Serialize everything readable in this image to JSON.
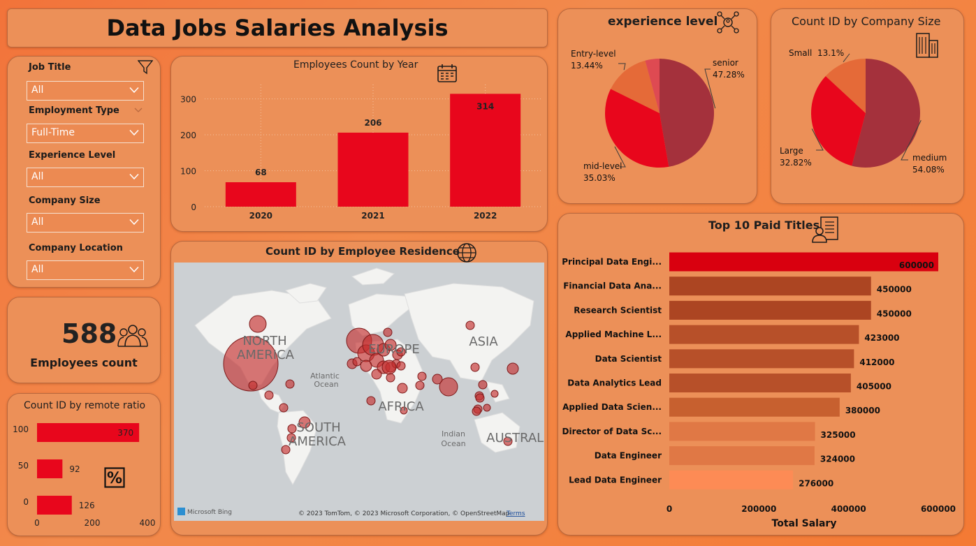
{
  "header": {
    "title": "Data Jobs Salaries Analysis"
  },
  "filters": {
    "items": [
      {
        "label": "Job Title",
        "value": "All"
      },
      {
        "label": "Employment Type",
        "value": "Full-Time"
      },
      {
        "label": "Experience Level",
        "value": "All"
      },
      {
        "label": "Company Size",
        "value": "All"
      },
      {
        "label": "Company Location",
        "value": "All"
      }
    ]
  },
  "kpi": {
    "value": "588",
    "label": "Employees count"
  },
  "colors": {
    "red": "#e8061c",
    "bar_dark": "#b0482a",
    "mid": "#c53428",
    "senior": "#a4313c",
    "small": "#e56a38"
  },
  "chart_data": [
    {
      "type": "bar",
      "title": "Employees Count by Year",
      "categories": [
        "2020",
        "2021",
        "2022"
      ],
      "values": [
        68,
        206,
        314
      ],
      "yticks": [
        "0",
        "100",
        "200",
        "300"
      ],
      "ylim": [
        0,
        340
      ],
      "grid": true
    },
    {
      "type": "bar",
      "orientation": "horizontal",
      "title": "Count ID by remote ratio",
      "categories": [
        "100",
        "50",
        "0"
      ],
      "values": [
        370,
        92,
        126
      ],
      "xticks": [
        "0",
        "200",
        "400"
      ],
      "xlim": [
        0,
        400
      ]
    },
    {
      "type": "pie",
      "title": "experience level",
      "slices": [
        {
          "label": "senior",
          "pct": "47.28%",
          "value": 47.28,
          "color": "#a4313c"
        },
        {
          "label": "mid-level",
          "pct": "35.03%",
          "value": 35.03,
          "color": "#e8061c"
        },
        {
          "label": "Entry-level",
          "pct": "13.44%",
          "value": 13.44,
          "color": "#e56a38"
        },
        {
          "label": "",
          "pct": "",
          "value": 4.25,
          "color": "#de4a52"
        }
      ]
    },
    {
      "type": "pie",
      "title": "Count ID by Company Size",
      "slices": [
        {
          "label": "medium",
          "pct": "54.08%",
          "value": 54.08,
          "color": "#a4313c"
        },
        {
          "label": "Large",
          "pct": "32.82%",
          "value": 32.82,
          "color": "#e8061c"
        },
        {
          "label": "Small",
          "pct": "13.1%",
          "value": 13.1,
          "color": "#e56a38"
        }
      ]
    },
    {
      "type": "bar",
      "orientation": "horizontal",
      "title": "Top 10 Paid Titles",
      "xlabel": "Total Salary",
      "categories": [
        "Principal Data Engi...",
        "Financial Data Ana...",
        "Research Scientist",
        "Applied Machine L...",
        "Data Scientist",
        "Data Analytics Lead",
        "Applied Data Scien...",
        "Director of Data Sc...",
        "Data Engineer",
        "Lead Data Engineer"
      ],
      "values": [
        600000,
        450000,
        450000,
        423000,
        412000,
        405000,
        380000,
        325000,
        324000,
        276000
      ],
      "colors": [
        "#d9000f",
        "#ac4522",
        "#ac4522",
        "#b75029",
        "#b75029",
        "#b75029",
        "#c7602f",
        "#e07845",
        "#e07845",
        "#fd8b55"
      ],
      "xticks": [
        "0",
        "200000",
        "400000",
        "600000"
      ],
      "xlim": [
        0,
        600000
      ]
    },
    {
      "type": "scatter",
      "title": "Count ID by Employee Residence",
      "note": "bubble map",
      "continents": [
        "NORTH AMERICA",
        "EUROPE",
        "ASIA",
        "AFRICA",
        "SOUTH AMERICA",
        "AUSTRALIA"
      ],
      "oceans": [
        "Atlantic Ocean",
        "Indian Ocean"
      ],
      "attribution": "© 2023 TomTom, © 2023 Microsoft Corporation, © OpenStreetMap",
      "terms": "Terms",
      "provider": "Microsoft Bing"
    }
  ]
}
